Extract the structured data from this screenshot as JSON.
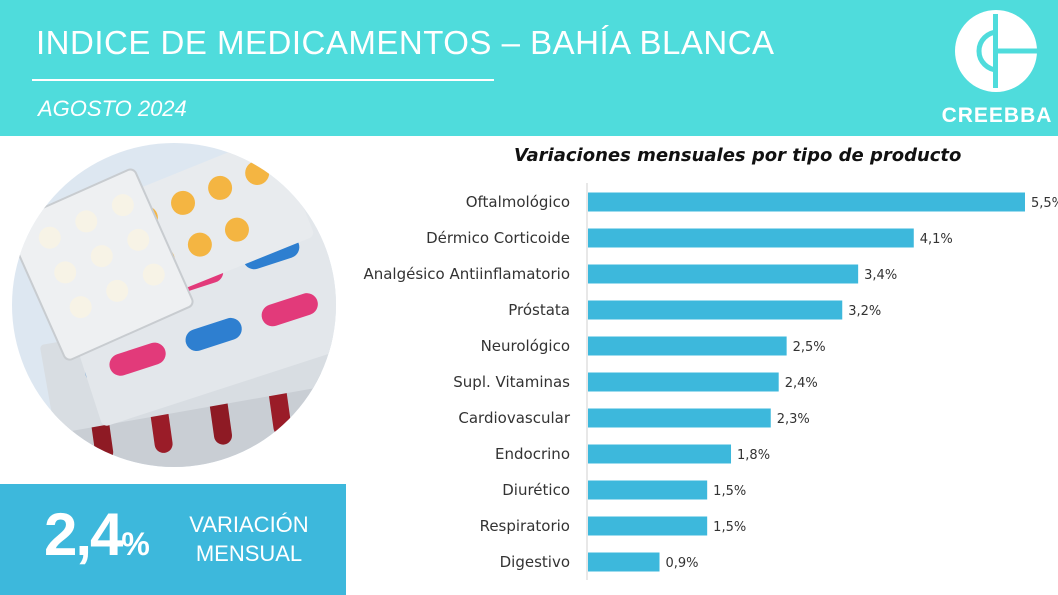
{
  "header": {
    "title": "INDICE DE MEDICAMENTOS – BAHÍA BLANCA",
    "subtitle": "AGOSTO 2024",
    "logo_name": "CREEBBA"
  },
  "kpi": {
    "value": "2,4",
    "unit": "%",
    "label_line1": "VARIACIÓN",
    "label_line2": "MENSUAL"
  },
  "colors": {
    "header": "#4fdcdc",
    "bar": "#3db8dc",
    "kpi_box": "#3db8dc"
  },
  "chart_data": {
    "type": "bar",
    "orientation": "horizontal",
    "title": "Variaciones mensuales por tipo de producto",
    "categories": [
      "Oftalmológico",
      "Dérmico Corticoide",
      "Analgésico Antiinflamatorio",
      "Próstata",
      "Neurológico",
      "Supl. Vitaminas",
      "Cardiovascular",
      "Endocrino",
      "Diurético",
      "Respiratorio",
      "Digestivo"
    ],
    "values": [
      5.5,
      4.1,
      3.4,
      3.2,
      2.5,
      2.4,
      2.3,
      1.8,
      1.5,
      1.5,
      0.9
    ],
    "value_labels": [
      "5,5%",
      "4,1%",
      "3,4%",
      "3,2%",
      "2,5%",
      "2,4%",
      "2,3%",
      "1,8%",
      "1,5%",
      "1,5%",
      "0,9%"
    ],
    "xlim": [
      0,
      5.5
    ],
    "grid": false,
    "legend": "none"
  }
}
